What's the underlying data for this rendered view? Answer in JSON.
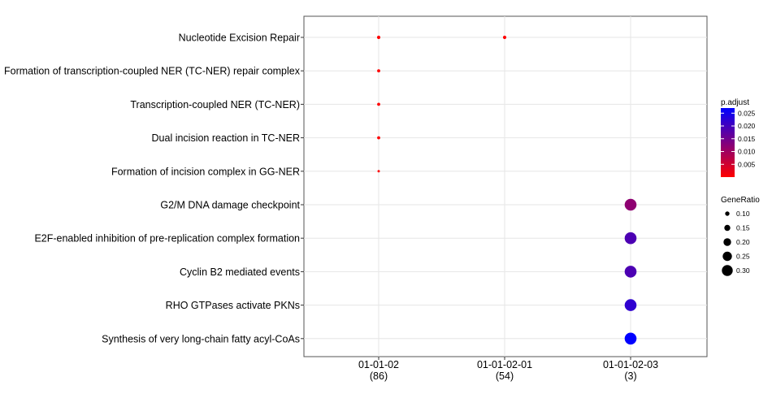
{
  "chart_data": {
    "type": "scatter",
    "title": "",
    "xlabel": "",
    "ylabel": "",
    "x_categories": [
      {
        "name": "01-01-02",
        "count": "(86)"
      },
      {
        "name": "01-01-02-01",
        "count": "(54)"
      },
      {
        "name": "01-01-02-03",
        "count": "(3)"
      }
    ],
    "y_categories": [
      "Nucleotide Excision Repair",
      "Formation of transcription-coupled NER (TC-NER) repair complex",
      "Transcription-coupled NER (TC-NER)",
      "Dual incision reaction in TC-NER",
      "Formation of incision complex in GG-NER",
      "G2/M DNA damage checkpoint",
      "E2F-enabled inhibition of pre-replication complex formation",
      "Cyclin B2 mediated events",
      "RHO GTPases activate PKNs",
      "Synthesis of very long-chain fatty acyl-CoAs"
    ],
    "points": [
      {
        "x": "01-01-02",
        "y": "Nucleotide Excision Repair",
        "gene_ratio": 0.07,
        "p_adjust": 0.0001
      },
      {
        "x": "01-01-02-01",
        "y": "Nucleotide Excision Repair",
        "gene_ratio": 0.07,
        "p_adjust": 0.0001
      },
      {
        "x": "01-01-02",
        "y": "Formation of transcription-coupled NER (TC-NER) repair complex",
        "gene_ratio": 0.06,
        "p_adjust": 0.0001
      },
      {
        "x": "01-01-02",
        "y": "Transcription-coupled NER (TC-NER)",
        "gene_ratio": 0.06,
        "p_adjust": 0.0001
      },
      {
        "x": "01-01-02",
        "y": "Dual incision reaction in TC-NER",
        "gene_ratio": 0.06,
        "p_adjust": 0.0001
      },
      {
        "x": "01-01-02",
        "y": "Formation of incision complex in GG-NER",
        "gene_ratio": 0.04,
        "p_adjust": 0.0002
      },
      {
        "x": "01-01-02-03",
        "y": "G2/M DNA damage checkpoint",
        "gene_ratio": 0.33,
        "p_adjust": 0.012
      },
      {
        "x": "01-01-02-03",
        "y": "E2F-enabled inhibition of pre-replication complex formation",
        "gene_ratio": 0.33,
        "p_adjust": 0.019
      },
      {
        "x": "01-01-02-03",
        "y": "Cyclin B2 mediated events",
        "gene_ratio": 0.33,
        "p_adjust": 0.019
      },
      {
        "x": "01-01-02-03",
        "y": "RHO GTPases activate PKNs",
        "gene_ratio": 0.33,
        "p_adjust": 0.022
      },
      {
        "x": "01-01-02-03",
        "y": "Synthesis of very long-chain fatty acyl-CoAs",
        "gene_ratio": 0.33,
        "p_adjust": 0.027
      }
    ],
    "color_legend": {
      "title": "p.adjust",
      "ticks": [
        "0.025",
        "0.020",
        "0.015",
        "0.010",
        "0.005"
      ],
      "tick_values": [
        0.025,
        0.02,
        0.015,
        0.01,
        0.005
      ],
      "range": [
        0.0,
        0.027
      ],
      "low_color": "#ff0000",
      "high_color": "#0000ff"
    },
    "size_legend": {
      "title": "GeneRatio",
      "labels": [
        "0.10",
        "0.15",
        "0.20",
        "0.25",
        "0.30"
      ],
      "values": [
        0.1,
        0.15,
        0.2,
        0.25,
        0.3
      ]
    },
    "grid": true,
    "legend_position": "right"
  }
}
